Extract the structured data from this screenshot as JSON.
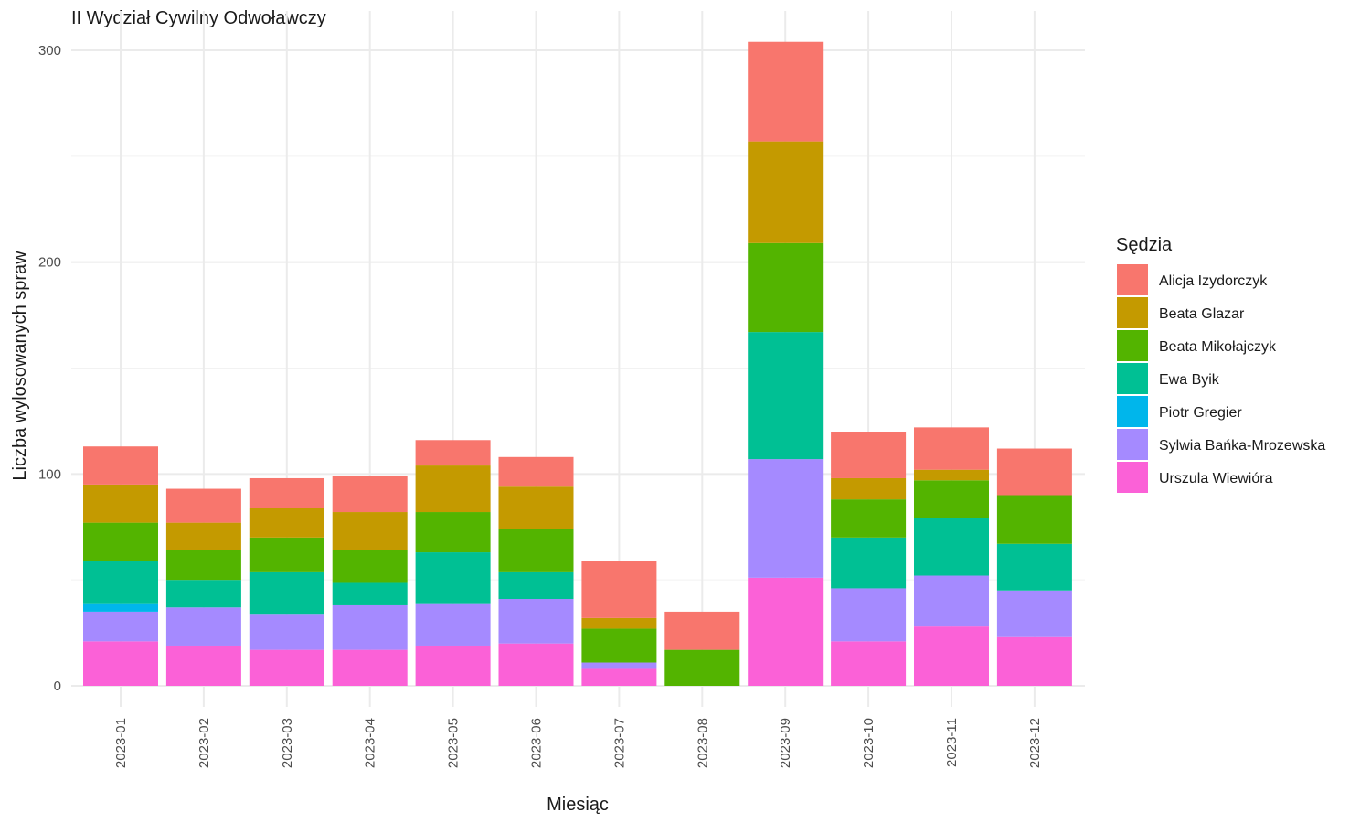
{
  "chart_data": {
    "type": "bar",
    "stacked": true,
    "title": "II Wydział Cywilny Odwoławczy",
    "xlabel": "Miesiąc",
    "ylabel": "Liczba wylosowanych spraw",
    "ylim": [
      -10,
      314
    ],
    "y_ticks": [
      0,
      100,
      200,
      300
    ],
    "grid": true,
    "legend_position": "right",
    "legend_title": "Sędzia",
    "categories": [
      "2023-01",
      "2023-02",
      "2023-03",
      "2023-04",
      "2023-05",
      "2023-06",
      "2023-07",
      "2023-08",
      "2023-09",
      "2023-10",
      "2023-11",
      "2023-12"
    ],
    "series": [
      {
        "name": "Alicja Izydorczyk",
        "color": "#F8766D",
        "values": [
          18,
          16,
          14,
          17,
          12,
          14,
          27,
          18,
          47,
          22,
          20,
          22
        ]
      },
      {
        "name": "Beata Glazar",
        "color": "#C49A00",
        "values": [
          18,
          13,
          14,
          18,
          22,
          20,
          5,
          0,
          48,
          10,
          5,
          0
        ]
      },
      {
        "name": "Beata Mikołajczyk",
        "color": "#53B400",
        "values": [
          18,
          14,
          16,
          15,
          19,
          20,
          16,
          17,
          42,
          18,
          18,
          23
        ]
      },
      {
        "name": "Ewa Byik",
        "color": "#00C094",
        "values": [
          20,
          13,
          20,
          11,
          24,
          13,
          0,
          0,
          60,
          24,
          27,
          22
        ]
      },
      {
        "name": "Piotr Gregier",
        "color": "#00B6EB",
        "values": [
          4,
          0,
          0,
          0,
          0,
          0,
          0,
          0,
          0,
          0,
          0,
          0
        ]
      },
      {
        "name": "Sylwia Bańka-Mrozewska",
        "color": "#A58AFF",
        "values": [
          14,
          18,
          17,
          21,
          20,
          21,
          3,
          0,
          56,
          25,
          24,
          22
        ]
      },
      {
        "name": "Urszula Wiewióra",
        "color": "#FB61D7",
        "values": [
          21,
          19,
          17,
          17,
          19,
          20,
          8,
          0,
          51,
          21,
          28,
          23
        ]
      }
    ]
  }
}
